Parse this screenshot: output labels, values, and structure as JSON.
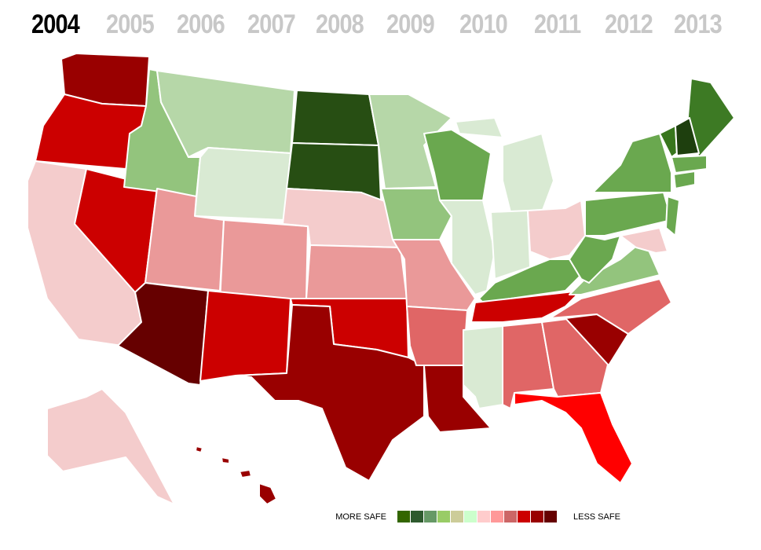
{
  "years": [
    "2004",
    "2005",
    "2006",
    "2007",
    "2008",
    "2009",
    "2010",
    "2011",
    "2012",
    "2013"
  ],
  "selected_year": 0,
  "legend": {
    "more_label": "MORE SAFE",
    "less_label": "LESS SAFE",
    "colors": [
      "#336600",
      "#2e5a2e",
      "#669966",
      "#99cc66",
      "#cccc99",
      "#ccffcc",
      "#ffcccc",
      "#ff9999",
      "#cc6666",
      "#cc0000",
      "#990000",
      "#660000"
    ]
  }
}
